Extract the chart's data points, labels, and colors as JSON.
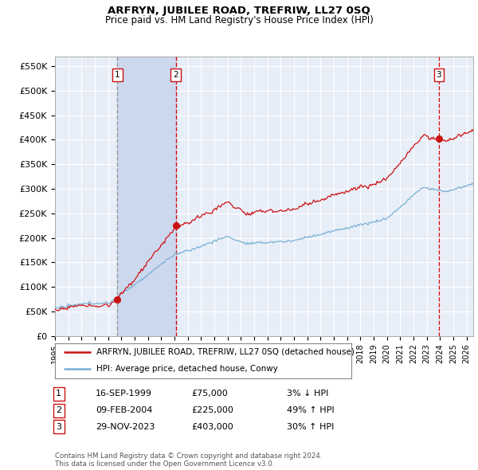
{
  "title": "ARFRYN, JUBILEE ROAD, TREFRIW, LL27 0SQ",
  "subtitle": "Price paid vs. HM Land Registry's House Price Index (HPI)",
  "ylim": [
    0,
    570000
  ],
  "yticks": [
    0,
    50000,
    100000,
    150000,
    200000,
    250000,
    300000,
    350000,
    400000,
    450000,
    500000,
    550000
  ],
  "ytick_labels": [
    "£0",
    "£50K",
    "£100K",
    "£150K",
    "£200K",
    "£250K",
    "£300K",
    "£350K",
    "£400K",
    "£450K",
    "£500K",
    "£550K"
  ],
  "background_color": "#ffffff",
  "plot_bg_color": "#e8eef8",
  "grid_color": "#ffffff",
  "hpi_color": "#7ab0d4",
  "price_color": "#cc1111",
  "vline1_color": "#999999",
  "vline23_color": "#cc1111",
  "shade_color": "#ccd8ee",
  "purchases": [
    {
      "date_num": 1999.71,
      "price": 75000,
      "label": "1"
    },
    {
      "date_num": 2004.1,
      "price": 225000,
      "label": "2"
    },
    {
      "date_num": 2023.91,
      "price": 403000,
      "label": "3"
    }
  ],
  "legend_entries": [
    {
      "label": "ARFRYN, JUBILEE ROAD, TREFRIW, LL27 0SQ (detached house)",
      "color": "#cc1111"
    },
    {
      "label": "HPI: Average price, detached house, Conwy",
      "color": "#7ab0d4"
    }
  ],
  "table_rows": [
    {
      "num": "1",
      "date": "16-SEP-1999",
      "price": "£75,000",
      "hpi": "3% ↓ HPI"
    },
    {
      "num": "2",
      "date": "09-FEB-2004",
      "price": "£225,000",
      "hpi": "49% ↑ HPI"
    },
    {
      "num": "3",
      "date": "29-NOV-2023",
      "price": "£403,000",
      "hpi": "30% ↑ HPI"
    }
  ],
  "footnote": "Contains HM Land Registry data © Crown copyright and database right 2024.\nThis data is licensed under the Open Government Licence v3.0.",
  "xmin": 1995.25,
  "xmax": 2026.5,
  "seed": 12345
}
